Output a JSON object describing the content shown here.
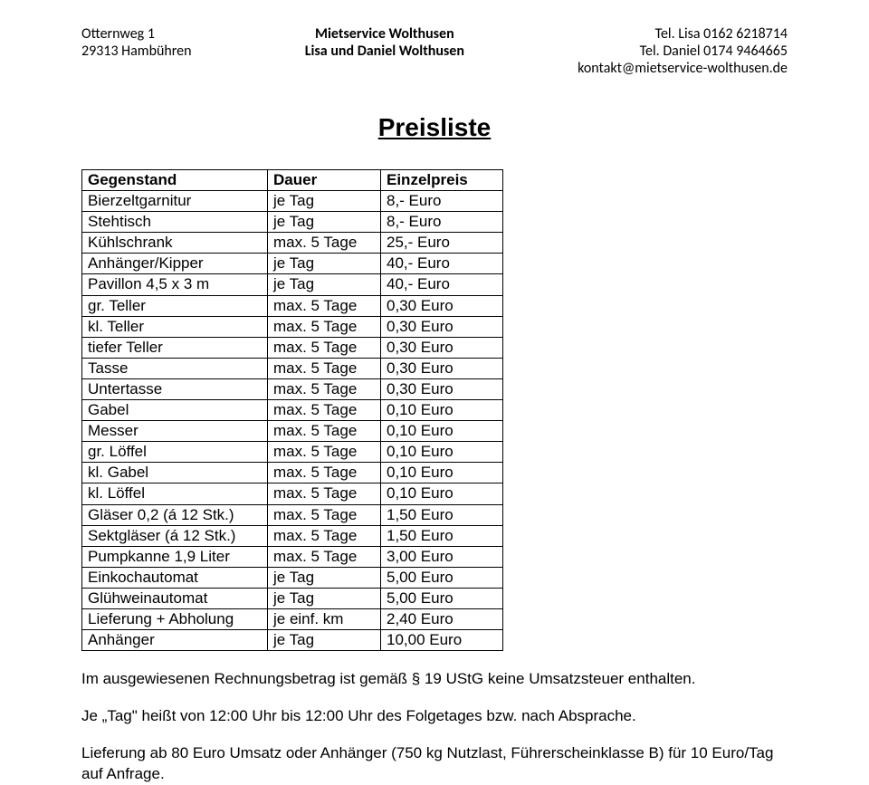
{
  "header": {
    "left": {
      "line1": "Otternweg 1",
      "line2": "29313 Hambühren"
    },
    "center": {
      "line1": "Mietservice Wolthusen",
      "line2": "Lisa und Daniel Wolthusen"
    },
    "right": {
      "line1": "Tel. Lisa 0162 6218714",
      "line2": "Tel. Daniel 0174 9464665",
      "line3": "kontakt@mietservice-wolthusen.de"
    }
  },
  "title": "Preisliste",
  "table": {
    "columns": [
      "Gegenstand",
      "Dauer",
      "Einzelpreis"
    ],
    "rows": [
      [
        "Bierzeltgarnitur",
        "je Tag",
        "8,- Euro"
      ],
      [
        "Stehtisch",
        "je Tag",
        "8,- Euro"
      ],
      [
        "Kühlschrank",
        "max. 5 Tage",
        "25,- Euro"
      ],
      [
        "Anhänger/Kipper",
        "je Tag",
        "40,- Euro"
      ],
      [
        "Pavillon 4,5 x 3 m",
        "je Tag",
        "40,- Euro"
      ],
      [
        "gr. Teller",
        "max. 5 Tage",
        "0,30 Euro"
      ],
      [
        "kl. Teller",
        "max. 5 Tage",
        "0,30 Euro"
      ],
      [
        "tiefer Teller",
        "max. 5 Tage",
        "0,30 Euro"
      ],
      [
        "Tasse",
        "max. 5 Tage",
        "0,30 Euro"
      ],
      [
        "Untertasse",
        "max. 5 Tage",
        "0,30 Euro"
      ],
      [
        "Gabel",
        "max. 5 Tage",
        "0,10 Euro"
      ],
      [
        "Messer",
        "max. 5 Tage",
        "0,10 Euro"
      ],
      [
        "gr. Löffel",
        "max. 5 Tage",
        "0,10 Euro"
      ],
      [
        "kl. Gabel",
        "max. 5 Tage",
        "0,10 Euro"
      ],
      [
        "kl. Löffel",
        "max. 5 Tage",
        "0,10 Euro"
      ],
      [
        "Gläser 0,2 (á 12 Stk.)",
        "max. 5 Tage",
        "1,50 Euro"
      ],
      [
        "Sektgläser (á 12 Stk.)",
        "max. 5 Tage",
        "1,50 Euro"
      ],
      [
        "Pumpkanne 1,9 Liter",
        "max. 5 Tage",
        "3,00 Euro"
      ],
      [
        "Einkochautomat",
        "je Tag",
        "5,00 Euro"
      ],
      [
        "Glühweinautomat",
        "je Tag",
        "5,00 Euro"
      ],
      [
        "Lieferung + Abholung",
        "je einf. km",
        "2,40 Euro"
      ],
      [
        "Anhänger",
        "je Tag",
        "10,00 Euro"
      ]
    ]
  },
  "notes": {
    "p1": "Im ausgewiesenen Rechnungsbetrag ist gemäß § 19 UStG keine Umsatzsteuer enthalten.",
    "p2": "Je „Tag\" heißt von 12:00 Uhr bis 12:00 Uhr des Folgetages bzw. nach Absprache.",
    "p3": "Lieferung ab 80 Euro Umsatz oder Anhänger (750 kg Nutzlast, Führerscheinklasse B) für 10 Euro/Tag auf Anfrage."
  }
}
